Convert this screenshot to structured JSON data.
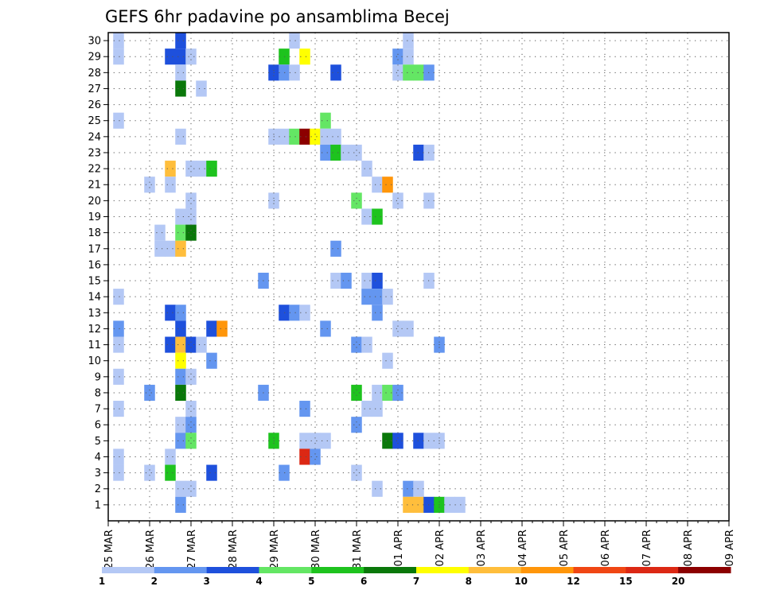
{
  "chart_data": {
    "type": "heatmap",
    "title": "GEFS 6hr padavine po ansamblima Becej",
    "y_ticks": [
      "1",
      "2",
      "3",
      "4",
      "5",
      "6",
      "7",
      "8",
      "9",
      "10",
      "11",
      "12",
      "13",
      "14",
      "15",
      "16",
      "17",
      "18",
      "19",
      "20",
      "21",
      "22",
      "23",
      "24",
      "25",
      "26",
      "27",
      "28",
      "29",
      "30"
    ],
    "ylim": [
      0,
      30.5
    ],
    "x_ticks": [
      "25 MAR",
      "26 MAR",
      "27 MAR",
      "28 MAR",
      "29 MAR",
      "30 MAR",
      "31 MAR",
      "01 APR",
      "02 APR",
      "03 APR",
      "04 APR",
      "05 APR",
      "06 APR",
      "07 APR",
      "08 APR",
      "09 APR"
    ],
    "xlim": [
      0,
      60
    ],
    "grid": true,
    "colorbar": {
      "labels": [
        "1",
        "2",
        "3",
        "4",
        "5",
        "6",
        "7",
        "8",
        "10",
        "12",
        "15",
        "20"
      ],
      "colors": {
        "b1": "#b4c8f5",
        "b2": "#6496f0",
        "b3": "#1e50dc",
        "g4": "#64e664",
        "g5": "#1ec31e",
        "g6": "#0a780a",
        "y7": "#ffff00",
        "o8": "#ffbe3c",
        "o10": "#ff960a",
        "r12": "#f04614",
        "r15": "#dc2814",
        "r20": "#8c0000"
      }
    },
    "cells": [
      [
        "b1",
        1,
        30
      ],
      [
        "b3",
        7,
        30
      ],
      [
        "b1",
        18,
        30
      ],
      [
        "b1",
        29,
        30
      ],
      [
        "b1",
        1,
        29
      ],
      [
        "b3",
        6,
        29
      ],
      [
        "b3",
        7,
        29
      ],
      [
        "b1",
        8,
        29
      ],
      [
        "g5",
        17,
        29
      ],
      [
        "y7",
        19,
        29
      ],
      [
        "b2",
        28,
        29
      ],
      [
        "b1",
        29,
        29
      ],
      [
        "b1",
        7,
        28
      ],
      [
        "b3",
        16,
        28
      ],
      [
        "b2",
        17,
        28
      ],
      [
        "b1",
        18,
        28
      ],
      [
        "b3",
        22,
        28
      ],
      [
        "b1",
        28,
        28
      ],
      [
        "g4",
        29,
        28
      ],
      [
        "g4",
        30,
        28
      ],
      [
        "b2",
        31,
        28
      ],
      [
        "g6",
        7,
        27
      ],
      [
        "b1",
        9,
        27
      ],
      [
        "b1",
        1,
        25
      ],
      [
        "g4",
        21,
        25
      ],
      [
        "b1",
        7,
        24
      ],
      [
        "b1",
        16,
        24
      ],
      [
        "b1",
        17,
        24
      ],
      [
        "g4",
        18,
        24
      ],
      [
        "r20",
        19,
        24
      ],
      [
        "y7",
        20,
        24
      ],
      [
        "b1",
        21,
        24
      ],
      [
        "b1",
        22,
        24
      ],
      [
        "b2",
        21,
        23
      ],
      [
        "g5",
        22,
        23
      ],
      [
        "b1",
        23,
        23
      ],
      [
        "b1",
        24,
        23
      ],
      [
        "b3",
        30,
        23
      ],
      [
        "b1",
        31,
        23
      ],
      [
        "o8",
        6,
        22
      ],
      [
        "b1",
        8,
        22
      ],
      [
        "b1",
        9,
        22
      ],
      [
        "g5",
        10,
        22
      ],
      [
        "b1",
        25,
        22
      ],
      [
        "b1",
        4,
        21
      ],
      [
        "b1",
        6,
        21
      ],
      [
        "b1",
        26,
        21
      ],
      [
        "o10",
        27,
        21
      ],
      [
        "b1",
        8,
        20
      ],
      [
        "b1",
        16,
        20
      ],
      [
        "g4",
        24,
        20
      ],
      [
        "b1",
        28,
        20
      ],
      [
        "b1",
        31,
        20
      ],
      [
        "b1",
        7,
        19
      ],
      [
        "b1",
        8,
        19
      ],
      [
        "b1",
        25,
        19
      ],
      [
        "g5",
        26,
        19
      ],
      [
        "b1",
        5,
        18
      ],
      [
        "g4",
        7,
        18
      ],
      [
        "g6",
        8,
        18
      ],
      [
        "b1",
        5,
        17
      ],
      [
        "b1",
        6,
        17
      ],
      [
        "o8",
        7,
        17
      ],
      [
        "b2",
        22,
        17
      ],
      [
        "b2",
        15,
        15
      ],
      [
        "b1",
        22,
        15
      ],
      [
        "b2",
        23,
        15
      ],
      [
        "b1",
        25,
        15
      ],
      [
        "b3",
        26,
        15
      ],
      [
        "b1",
        31,
        15
      ],
      [
        "b1",
        1,
        14
      ],
      [
        "b2",
        25,
        14
      ],
      [
        "b2",
        26,
        14
      ],
      [
        "b1",
        27,
        14
      ],
      [
        "b3",
        6,
        13
      ],
      [
        "b2",
        7,
        13
      ],
      [
        "b3",
        17,
        13
      ],
      [
        "b2",
        18,
        13
      ],
      [
        "b1",
        19,
        13
      ],
      [
        "b2",
        26,
        13
      ],
      [
        "b2",
        1,
        12
      ],
      [
        "b3",
        7,
        12
      ],
      [
        "b3",
        10,
        12
      ],
      [
        "o10",
        11,
        12
      ],
      [
        "b2",
        21,
        12
      ],
      [
        "b1",
        28,
        12
      ],
      [
        "b1",
        29,
        12
      ],
      [
        "b1",
        1,
        11
      ],
      [
        "b3",
        6,
        11
      ],
      [
        "o8",
        7,
        11
      ],
      [
        "b3",
        8,
        11
      ],
      [
        "b1",
        9,
        11
      ],
      [
        "b2",
        24,
        11
      ],
      [
        "b1",
        25,
        11
      ],
      [
        "b2",
        32,
        11
      ],
      [
        "y7",
        7,
        10
      ],
      [
        "b2",
        10,
        10
      ],
      [
        "b1",
        27,
        10
      ],
      [
        "b1",
        1,
        9
      ],
      [
        "b2",
        7,
        9
      ],
      [
        "b1",
        8,
        9
      ],
      [
        "b2",
        4,
        8
      ],
      [
        "g6",
        7,
        8
      ],
      [
        "b2",
        15,
        8
      ],
      [
        "g5",
        24,
        8
      ],
      [
        "b1",
        26,
        8
      ],
      [
        "g4",
        27,
        8
      ],
      [
        "b2",
        28,
        8
      ],
      [
        "b1",
        1,
        7
      ],
      [
        "b1",
        8,
        7
      ],
      [
        "b2",
        19,
        7
      ],
      [
        "b1",
        25,
        7
      ],
      [
        "b1",
        26,
        7
      ],
      [
        "b1",
        7,
        6
      ],
      [
        "b2",
        8,
        6
      ],
      [
        "b2",
        24,
        6
      ],
      [
        "b2",
        7,
        5
      ],
      [
        "g4",
        8,
        5
      ],
      [
        "g5",
        16,
        5
      ],
      [
        "b1",
        19,
        5
      ],
      [
        "b1",
        20,
        5
      ],
      [
        "b1",
        21,
        5
      ],
      [
        "g6",
        27,
        5
      ],
      [
        "b3",
        28,
        5
      ],
      [
        "b3",
        30,
        5
      ],
      [
        "b1",
        31,
        5
      ],
      [
        "b1",
        32,
        5
      ],
      [
        "b1",
        1,
        4
      ],
      [
        "b1",
        6,
        4
      ],
      [
        "r15",
        19,
        4
      ],
      [
        "b2",
        20,
        4
      ],
      [
        "b1",
        1,
        3
      ],
      [
        "b1",
        4,
        3
      ],
      [
        "g5",
        6,
        3
      ],
      [
        "b3",
        10,
        3
      ],
      [
        "b2",
        17,
        3
      ],
      [
        "b1",
        24,
        3
      ],
      [
        "b1",
        7,
        2
      ],
      [
        "b1",
        8,
        2
      ],
      [
        "b1",
        26,
        2
      ],
      [
        "b2",
        29,
        2
      ],
      [
        "b1",
        30,
        2
      ],
      [
        "b2",
        7,
        1
      ],
      [
        "o8",
        29,
        1
      ],
      [
        "o8",
        30,
        1
      ],
      [
        "b3",
        31,
        1
      ],
      [
        "g5",
        32,
        1
      ],
      [
        "b1",
        33,
        1
      ],
      [
        "b1",
        34,
        1
      ]
    ]
  }
}
